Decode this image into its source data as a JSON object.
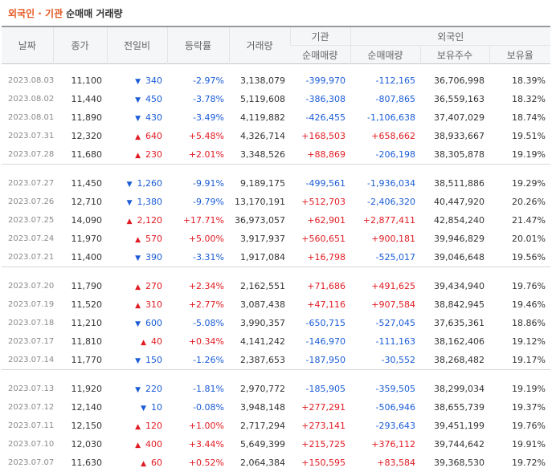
{
  "title": {
    "main": "외국인 · 기관",
    "sub": "순매매 거래량"
  },
  "header": {
    "date": "날짜",
    "close": "종가",
    "change": "전일비",
    "rate": "등락률",
    "volume": "거래량",
    "inst": "기관",
    "foreign": "외국인",
    "inst_net": "순매매량",
    "foreign_net": "순매매량",
    "holdings": "보유주수",
    "ratio": "보유율"
  },
  "groups": [
    [
      {
        "date": "2023.08.03",
        "close": "11,100",
        "dir": "down",
        "change": "340",
        "rate": "-2.97%",
        "volume": "3,138,079",
        "inst": "-399,970",
        "foreign": "-112,165",
        "holdings": "36,706,998",
        "ratio": "18.39%"
      },
      {
        "date": "2023.08.02",
        "close": "11,440",
        "dir": "down",
        "change": "450",
        "rate": "-3.78%",
        "volume": "5,119,608",
        "inst": "-386,308",
        "foreign": "-807,865",
        "holdings": "36,559,163",
        "ratio": "18.32%"
      },
      {
        "date": "2023.08.01",
        "close": "11,890",
        "dir": "down",
        "change": "430",
        "rate": "-3.49%",
        "volume": "4,119,882",
        "inst": "-426,455",
        "foreign": "-1,106,638",
        "holdings": "37,407,029",
        "ratio": "18.74%"
      },
      {
        "date": "2023.07.31",
        "close": "12,320",
        "dir": "up",
        "change": "640",
        "rate": "+5.48%",
        "volume": "4,326,714",
        "inst": "+168,503",
        "foreign": "+658,662",
        "holdings": "38,933,667",
        "ratio": "19.51%"
      },
      {
        "date": "2023.07.28",
        "close": "11,680",
        "dir": "up",
        "change": "230",
        "rate": "+2.01%",
        "volume": "3,348,526",
        "inst": "+88,869",
        "foreign": "-206,198",
        "holdings": "38,305,878",
        "ratio": "19.19%"
      }
    ],
    [
      {
        "date": "2023.07.27",
        "close": "11,450",
        "dir": "down",
        "change": "1,260",
        "rate": "-9.91%",
        "volume": "9,189,175",
        "inst": "-499,561",
        "foreign": "-1,936,034",
        "holdings": "38,511,886",
        "ratio": "19.29%"
      },
      {
        "date": "2023.07.26",
        "close": "12,710",
        "dir": "down",
        "change": "1,380",
        "rate": "-9.79%",
        "volume": "13,170,191",
        "inst": "+512,703",
        "foreign": "-2,406,320",
        "holdings": "40,447,920",
        "ratio": "20.26%"
      },
      {
        "date": "2023.07.25",
        "close": "14,090",
        "dir": "up",
        "change": "2,120",
        "rate": "+17.71%",
        "volume": "36,973,057",
        "inst": "+62,901",
        "foreign": "+2,877,411",
        "holdings": "42,854,240",
        "ratio": "21.47%"
      },
      {
        "date": "2023.07.24",
        "close": "11,970",
        "dir": "up",
        "change": "570",
        "rate": "+5.00%",
        "volume": "3,917,937",
        "inst": "+560,651",
        "foreign": "+900,181",
        "holdings": "39,946,829",
        "ratio": "20.01%"
      },
      {
        "date": "2023.07.21",
        "close": "11,400",
        "dir": "down",
        "change": "390",
        "rate": "-3.31%",
        "volume": "1,917,084",
        "inst": "+16,798",
        "foreign": "-525,017",
        "holdings": "39,046,648",
        "ratio": "19.56%"
      }
    ],
    [
      {
        "date": "2023.07.20",
        "close": "11,790",
        "dir": "up",
        "change": "270",
        "rate": "+2.34%",
        "volume": "2,162,551",
        "inst": "+71,686",
        "foreign": "+491,625",
        "holdings": "39,434,940",
        "ratio": "19.76%"
      },
      {
        "date": "2023.07.19",
        "close": "11,520",
        "dir": "up",
        "change": "310",
        "rate": "+2.77%",
        "volume": "3,087,438",
        "inst": "+47,116",
        "foreign": "+907,584",
        "holdings": "38,842,945",
        "ratio": "19.46%"
      },
      {
        "date": "2023.07.18",
        "close": "11,210",
        "dir": "down",
        "change": "600",
        "rate": "-5.08%",
        "volume": "3,990,357",
        "inst": "-650,715",
        "foreign": "-527,045",
        "holdings": "37,635,361",
        "ratio": "18.86%"
      },
      {
        "date": "2023.07.17",
        "close": "11,810",
        "dir": "up",
        "change": "40",
        "rate": "+0.34%",
        "volume": "4,141,242",
        "inst": "-146,970",
        "foreign": "-111,163",
        "holdings": "38,162,406",
        "ratio": "19.12%"
      },
      {
        "date": "2023.07.14",
        "close": "11,770",
        "dir": "down",
        "change": "150",
        "rate": "-1.26%",
        "volume": "2,387,653",
        "inst": "-187,950",
        "foreign": "-30,552",
        "holdings": "38,268,482",
        "ratio": "19.17%"
      }
    ],
    [
      {
        "date": "2023.07.13",
        "close": "11,920",
        "dir": "down",
        "change": "220",
        "rate": "-1.81%",
        "volume": "2,970,772",
        "inst": "-185,905",
        "foreign": "-359,505",
        "holdings": "38,299,034",
        "ratio": "19.19%"
      },
      {
        "date": "2023.07.12",
        "close": "12,140",
        "dir": "down",
        "change": "10",
        "rate": "-0.08%",
        "volume": "3,948,148",
        "inst": "+277,291",
        "foreign": "-506,946",
        "holdings": "38,655,739",
        "ratio": "19.37%"
      },
      {
        "date": "2023.07.11",
        "close": "12,150",
        "dir": "up",
        "change": "120",
        "rate": "+1.00%",
        "volume": "2,717,294",
        "inst": "+273,141",
        "foreign": "-293,643",
        "holdings": "39,451,199",
        "ratio": "19.76%"
      },
      {
        "date": "2023.07.10",
        "close": "12,030",
        "dir": "up",
        "change": "400",
        "rate": "+3.44%",
        "volume": "5,649,399",
        "inst": "+215,725",
        "foreign": "+376,112",
        "holdings": "39,744,642",
        "ratio": "19.91%"
      },
      {
        "date": "2023.07.07",
        "close": "11,630",
        "dir": "up",
        "change": "60",
        "rate": "+0.52%",
        "volume": "2,064,384",
        "inst": "+150,595",
        "foreign": "+83,584",
        "holdings": "39,368,530",
        "ratio": "19.72%"
      }
    ]
  ],
  "colors": {
    "up": "#e01b22",
    "down": "#1a5cd6",
    "title_accent": "#e5551e"
  },
  "icons": {
    "up": "▲",
    "down": "▼"
  }
}
